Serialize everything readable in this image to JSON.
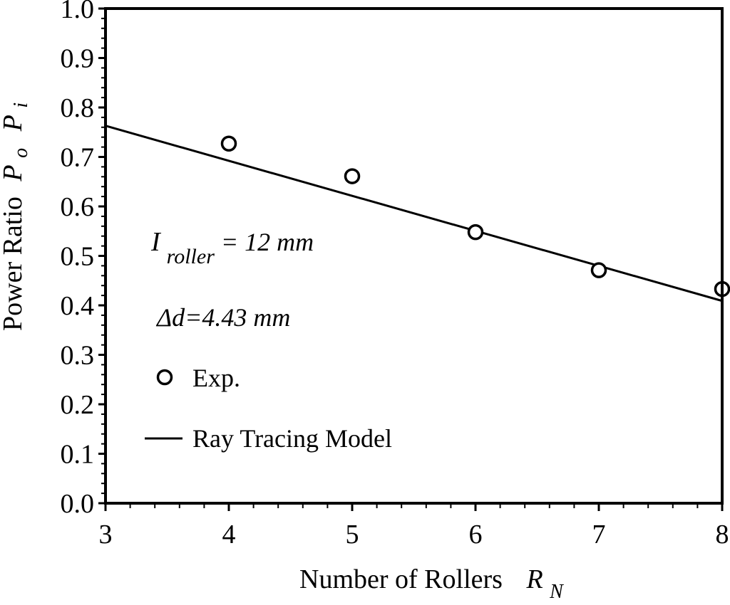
{
  "chart_data": {
    "type": "scatter",
    "xlabel": "Number of Rollers",
    "xlabel_symbol": "R",
    "xlabel_subscript": "N",
    "ylabel": "Power Ratio",
    "ylabel_symbol_1": "P",
    "ylabel_subscript_1": "o",
    "ylabel_symbol_2": "P",
    "ylabel_subscript_2": "i",
    "xlim": [
      3,
      8
    ],
    "ylim": [
      0.0,
      1.0
    ],
    "xticks": [
      "3",
      "4",
      "5",
      "6",
      "7",
      "8"
    ],
    "xtick_values": [
      3,
      4,
      5,
      6,
      7,
      8
    ],
    "yticks": [
      "0.0",
      "0.1",
      "0.2",
      "0.3",
      "0.4",
      "0.5",
      "0.6",
      "0.7",
      "0.8",
      "0.9",
      "1.0"
    ],
    "ytick_values": [
      0.0,
      0.1,
      0.2,
      0.3,
      0.4,
      0.5,
      0.6,
      0.7,
      0.8,
      0.9,
      1.0
    ],
    "grid": false,
    "legend_position": "left",
    "annotations": {
      "roller_symbol": "I",
      "roller_subscript": "roller",
      "roller_value": " = 12 mm",
      "delta_d": "Δd=4.43 mm"
    },
    "series": [
      {
        "name": "Exp.",
        "marker": "open-circle",
        "x": [
          4,
          5,
          6,
          7,
          8
        ],
        "y": [
          0.727,
          0.661,
          0.548,
          0.471,
          0.433
        ]
      },
      {
        "name": "Ray Tracing Model",
        "marker": "line",
        "x": [
          3,
          8
        ],
        "y": [
          0.763,
          0.409
        ]
      }
    ]
  }
}
